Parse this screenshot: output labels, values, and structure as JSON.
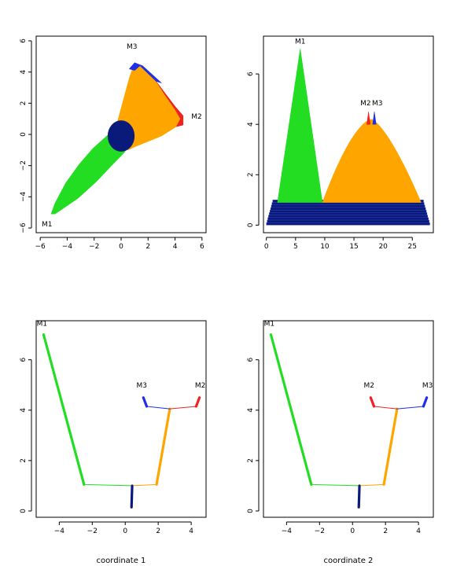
{
  "colors": {
    "green": "#22dd22",
    "orange": "#ffa500",
    "red": "#ee2222",
    "blue": "#1f2fe8",
    "navy": "#0a1a7a",
    "line": "#333333"
  },
  "chart_data": [
    {
      "type": "area",
      "title": "",
      "xlabel": "",
      "ylabel": "",
      "xlim": [
        -6,
        6
      ],
      "ylim": [
        -6,
        6
      ],
      "xticks": [
        "−6",
        "−4",
        "−2",
        "0",
        "2",
        "4",
        "6"
      ],
      "yticks": [
        "−6",
        "−4",
        "−2",
        "0",
        "2",
        "4",
        "6"
      ],
      "annotations": [
        "M1",
        "M2",
        "M3"
      ],
      "regions": [
        {
          "color": "green",
          "polygon": [
            [
              -5.2,
              -5.1
            ],
            [
              -4.9,
              -5.1
            ],
            [
              -3.2,
              -4.1
            ],
            [
              -1.8,
              -3.0
            ],
            [
              -0.6,
              -1.9
            ],
            [
              0.2,
              -1.2
            ],
            [
              0.6,
              -0.7
            ],
            [
              -0.1,
              0.2
            ],
            [
              -0.4,
              0.4
            ],
            [
              -1.2,
              -0.2
            ],
            [
              -2.1,
              -0.9
            ],
            [
              -3.1,
              -1.9
            ],
            [
              -4.1,
              -3.1
            ],
            [
              -4.9,
              -4.4
            ]
          ]
        },
        {
          "color": "orange",
          "polygon": [
            [
              -0.4,
              0.4
            ],
            [
              0.6,
              3.6
            ],
            [
              1.0,
              4.6
            ],
            [
              1.4,
              4.4
            ],
            [
              2.6,
              3.4
            ],
            [
              4.0,
              1.6
            ],
            [
              4.4,
              1.0
            ],
            [
              4.1,
              0.5
            ],
            [
              3.0,
              -0.1
            ],
            [
              1.0,
              -0.8
            ],
            [
              0.5,
              -1.0
            ],
            [
              0.0,
              -0.4
            ]
          ]
        },
        {
          "color": "red",
          "polygon": [
            [
              2.6,
              3.4
            ],
            [
              4.0,
              1.8
            ],
            [
              4.6,
              1.2
            ],
            [
              4.6,
              0.6
            ],
            [
              4.1,
              0.5
            ],
            [
              4.4,
              1.0
            ],
            [
              4.0,
              1.6
            ],
            [
              3.2,
              2.6
            ]
          ]
        },
        {
          "color": "blue",
          "polygon": [
            [
              0.6,
              4.2
            ],
            [
              1.0,
              4.6
            ],
            [
              1.6,
              4.4
            ],
            [
              3.0,
              3.3
            ],
            [
              2.6,
              3.4
            ],
            [
              1.4,
              4.4
            ],
            [
              1.0,
              4.1
            ]
          ]
        }
      ],
      "disk": {
        "color": "navy",
        "center": [
          0.0,
          -0.1
        ],
        "radius": 1.0
      }
    },
    {
      "type": "area",
      "title": "",
      "xlabel": "",
      "ylabel": "",
      "xlim": [
        0,
        28
      ],
      "ylim": [
        0,
        7
      ],
      "xticks": [
        "0",
        "5",
        "10",
        "15",
        "20",
        "25"
      ],
      "yticks": [
        "0",
        "2",
        "4",
        "6"
      ],
      "annotations": [
        "M1",
        "M2",
        "M3"
      ],
      "peaks": [
        {
          "name": "M1",
          "x": 5.8,
          "y": 7.0
        },
        {
          "name": "M2",
          "x": 17.5,
          "y": 4.5
        },
        {
          "name": "M3",
          "x": 18.5,
          "y": 4.5
        }
      ],
      "base_band": {
        "color": "navy",
        "x": [
          0,
          28
        ],
        "y": [
          0,
          1.0
        ]
      },
      "green_triangle": {
        "color": "green",
        "points": [
          [
            1.9,
            0.9
          ],
          [
            5.8,
            7.0
          ],
          [
            9.6,
            0.9
          ]
        ]
      },
      "orange_hump": {
        "color": "orange",
        "left": 9.6,
        "peak": [
          18.0,
          4.2
        ],
        "right": 26.5
      }
    },
    {
      "type": "line",
      "title": "",
      "xlabel": "coordinate 1",
      "ylabel": "",
      "xlim": [
        -5.2,
        4.7
      ],
      "ylim": [
        -0.2,
        7.4
      ],
      "xticks": [
        "−4",
        "−2",
        "0",
        "2",
        "4"
      ],
      "yticks": [
        "0",
        "2",
        "4",
        "6"
      ],
      "annotations": [
        "M1",
        "M3",
        "M2"
      ],
      "tree": {
        "nodes": {
          "root": [
            0.4,
            1.0
          ],
          "bgo": [
            -2.5,
            1.05
          ],
          "og": [
            1.9,
            1.05
          ],
          "rb": [
            2.7,
            4.05
          ],
          "M1": [
            -4.9,
            7.0
          ],
          "M2": [
            4.5,
            4.5
          ],
          "M3": [
            1.1,
            4.5
          ]
        },
        "edges": [
          {
            "color": "green",
            "from": "root",
            "to": "bgo"
          },
          {
            "color": "green",
            "from": "bgo",
            "to": "M1",
            "thick": true
          },
          {
            "color": "orange",
            "from": "root",
            "to": "og"
          },
          {
            "color": "orange",
            "from": "og",
            "to": "rb",
            "thick": true
          },
          {
            "color": "blue",
            "from": "rb",
            "to": "b1"
          },
          {
            "color": "red",
            "from": "rb",
            "to": "r1"
          },
          {
            "color": "navy",
            "from": "root",
            "to": "navyEnd",
            "thick": true
          }
        ]
      }
    },
    {
      "type": "line",
      "title": "",
      "xlabel": "coordinate 2",
      "ylabel": "",
      "xlim": [
        -5.2,
        4.7
      ],
      "ylim": [
        -0.2,
        7.4
      ],
      "xticks": [
        "−4",
        "−2",
        "0",
        "2",
        "4"
      ],
      "yticks": [
        "0",
        "2",
        "4",
        "6"
      ],
      "annotations": [
        "M1",
        "M2",
        "M3"
      ]
    }
  ]
}
